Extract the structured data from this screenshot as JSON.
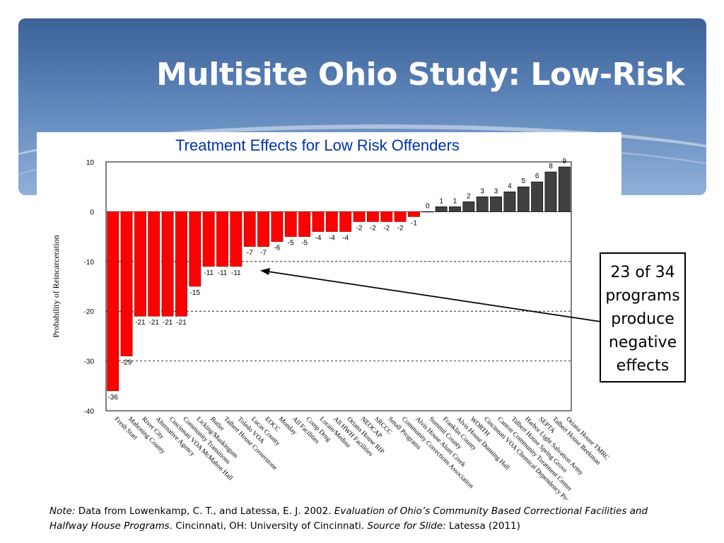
{
  "slide": {
    "title": "Multisite Ohio Study: Low-Risk"
  },
  "callout": {
    "text": "23 of 34 programs produce negative effects"
  },
  "note": {
    "label": "Note:",
    "text1": " Data from Lowenkamp, C. T., and Latessa, E. J. 2002. ",
    "title_italic": "Evaluation of Ohio’s Community Based Correctional Facilities and Halfway House Programs",
    "text2": ". Cincinnati, OH: University of Cincinnati. ",
    "source_label": "Source for Slide:",
    "source_text": " Latessa (2011)"
  },
  "colors": {
    "negative": "#ff0000",
    "positive": "#404040",
    "title_blue": "#0033aa"
  },
  "chart_data": {
    "type": "bar",
    "title": "Treatment Effects for Low Risk Offenders",
    "xlabel": "",
    "ylabel": "Probability of Reincarceration",
    "ylim": [
      -40,
      10
    ],
    "yticks": [
      10,
      0,
      -10,
      -20,
      -30,
      -40
    ],
    "grid": "dashed horizontal",
    "categories": [
      "Fresh Start",
      "Mahoning County",
      "River City",
      "Alternative Agency",
      "Cincinnati VOA McMahon Hall",
      "Community Transitions",
      "Licking/Muskingum",
      "Butler",
      "Talbert House Cornerstone",
      "Toledo VOA",
      "Lucas County",
      "EOCC",
      "Monday",
      "All Facilities",
      "Comp Drug",
      "Lorain/Medina",
      "All HWH Facilities",
      "Oriana House RIP",
      "NEOCAP",
      "SRCCC",
      "Small Programs",
      "Community Corrections Association",
      "Alvis House Alum Creek",
      "Summit County",
      "Franklin County",
      "Alvis House Dunning Hall",
      "WORTH",
      "Cincinnati VOA Chemical Dependency Program",
      "Canton Community Treatment Center",
      "Talbert House Spring Grove",
      "Harbor Light Salvation Army",
      "SEPTA",
      "Talbert House Beekman",
      "Oriana House TMRC"
    ],
    "values": [
      -36,
      -29,
      -21,
      -21,
      -21,
      -21,
      -15,
      -11,
      -11,
      -11,
      -7,
      -7,
      -6,
      -5,
      -5,
      -4,
      -4,
      -4,
      -2,
      -2,
      -2,
      -2,
      -1,
      0,
      1,
      1,
      2,
      3,
      3,
      4,
      5,
      6,
      8,
      9
    ]
  }
}
